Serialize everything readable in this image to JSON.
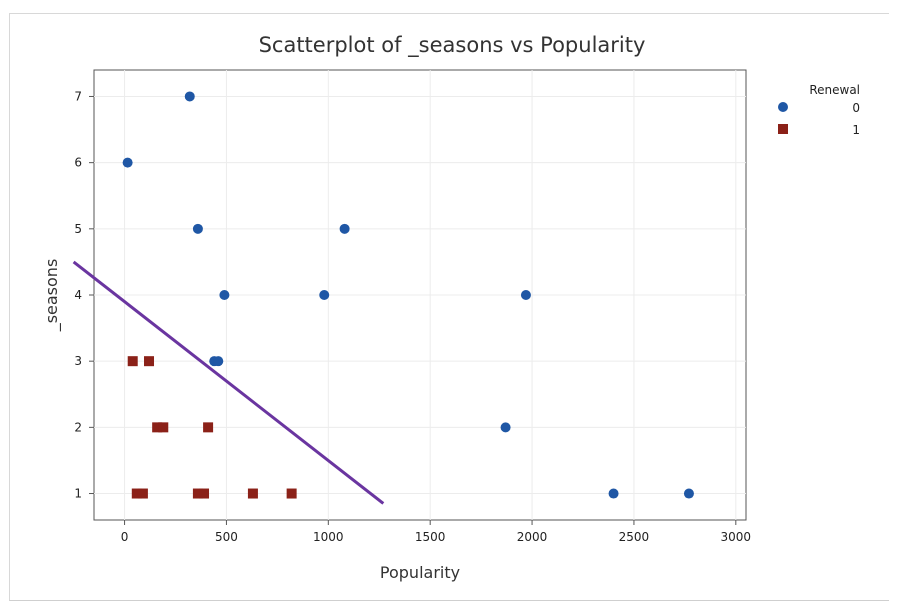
{
  "chart_data": {
    "type": "scatter",
    "title": "Scatterplot of _seasons vs Popularity",
    "xlabel": "Popularity",
    "ylabel": "_seasons",
    "xlim": [
      -150,
      3050
    ],
    "ylim": [
      0.6,
      7.4
    ],
    "xticks": [
      0,
      500,
      1000,
      1500,
      2000,
      2500,
      3000
    ],
    "yticks": [
      1,
      2,
      3,
      4,
      5,
      6,
      7
    ],
    "grid": true,
    "legend": {
      "title": "Renewal",
      "placement": "right",
      "entries": [
        "0",
        "1"
      ]
    },
    "series": [
      {
        "name": "0",
        "marker": "circle",
        "color": "#1f57a5",
        "points": [
          [
            320,
            7
          ],
          [
            15,
            6
          ],
          [
            360,
            5
          ],
          [
            1080,
            5
          ],
          [
            490,
            4
          ],
          [
            980,
            4
          ],
          [
            1970,
            4
          ],
          [
            440,
            3
          ],
          [
            460,
            3
          ],
          [
            1870,
            2
          ],
          [
            2400,
            1
          ],
          [
            2770,
            1
          ]
        ]
      },
      {
        "name": "1",
        "marker": "square",
        "color": "#8b2118",
        "points": [
          [
            40,
            3
          ],
          [
            120,
            3
          ],
          [
            160,
            2
          ],
          [
            190,
            2
          ],
          [
            410,
            2
          ],
          [
            60,
            1
          ],
          [
            90,
            1
          ],
          [
            360,
            1
          ],
          [
            390,
            1
          ],
          [
            630,
            1
          ],
          [
            820,
            1
          ]
        ]
      }
    ],
    "annotations": [
      {
        "type": "line",
        "color": "#6a35a0",
        "from": [
          -250,
          4.5
        ],
        "to": [
          1270,
          0.85
        ]
      }
    ]
  }
}
